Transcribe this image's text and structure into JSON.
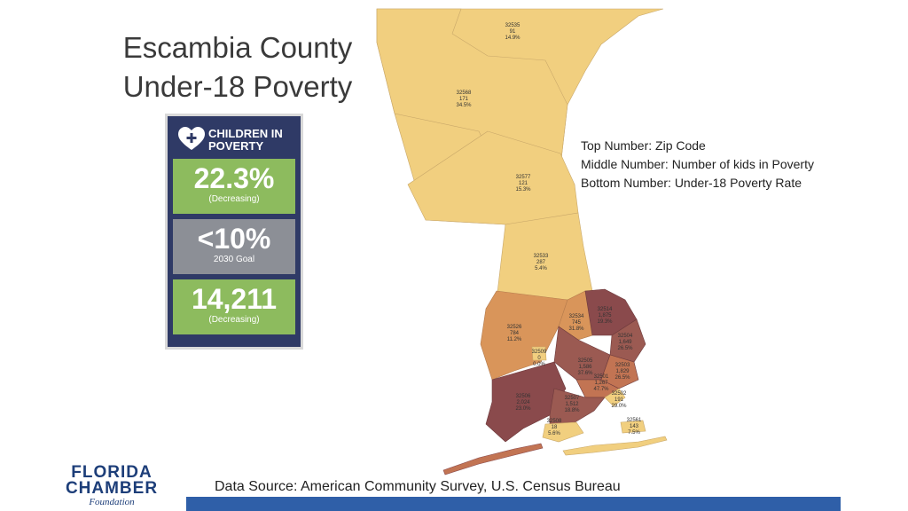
{
  "title": {
    "line1": "Escambia County",
    "line2": "Under-18 Poverty"
  },
  "panel": {
    "label": "CHILDREN IN POVERTY",
    "stats": [
      {
        "value": "22.3%",
        "sub": "(Decreasing)",
        "color": "#8dbb5e"
      },
      {
        "value": "<10%",
        "sub": "2030 Goal",
        "color": "#8c8f96"
      },
      {
        "value": "14,211",
        "sub": "(Decreasing)",
        "color": "#8dbb5e"
      }
    ]
  },
  "legend": {
    "top": "Top Number:  Zip Code",
    "middle": "Middle Number:  Number of kids in Poverty",
    "bottom": "Bottom Number:  Under-18 Poverty Rate"
  },
  "zips": [
    {
      "zip": "32535",
      "kids": "91",
      "rate": "14.9%"
    },
    {
      "zip": "32568",
      "kids": "171",
      "rate": "34.5%"
    },
    {
      "zip": "32577",
      "kids": "121",
      "rate": "15.3%"
    },
    {
      "zip": "32533",
      "kids": "287",
      "rate": "5.4%"
    },
    {
      "zip": "32526",
      "kids": "784",
      "rate": "11.2%"
    },
    {
      "zip": "32534",
      "kids": "745",
      "rate": "31.8%"
    },
    {
      "zip": "32514",
      "kids": "1,875",
      "rate": "19.3%"
    },
    {
      "zip": "32504",
      "kids": "1,649",
      "rate": "26.5%"
    },
    {
      "zip": "32509",
      "kids": "0",
      "rate": "0.0%"
    },
    {
      "zip": "32505",
      "kids": "1,586",
      "rate": "37.6%"
    },
    {
      "zip": "32503",
      "kids": "1,829",
      "rate": "26.5%"
    },
    {
      "zip": "32501",
      "kids": "1,267",
      "rate": "47.7%"
    },
    {
      "zip": "32506",
      "kids": "2,024",
      "rate": "23.0%"
    },
    {
      "zip": "32507",
      "kids": "1,512",
      "rate": "18.8%"
    },
    {
      "zip": "32502",
      "kids": "191",
      "rate": "29.0%"
    },
    {
      "zip": "32508",
      "kids": "18",
      "rate": "5.6%"
    },
    {
      "zip": "32561",
      "kids": "143",
      "rate": "7.5%"
    }
  ],
  "colors": {
    "light": "#f1cf7f",
    "mid": "#d9955a",
    "midDark": "#c27453",
    "dark": "#9b5a52",
    "darkest": "#8a4a4c",
    "panel": "#2f3a66",
    "bar": "#2f5fa8"
  },
  "logo": {
    "line1": "FLORIDA",
    "line2": "CHAMBER",
    "line3": "Foundation"
  },
  "source": "Data Source:  American Community Survey, U.S. Census Bureau"
}
